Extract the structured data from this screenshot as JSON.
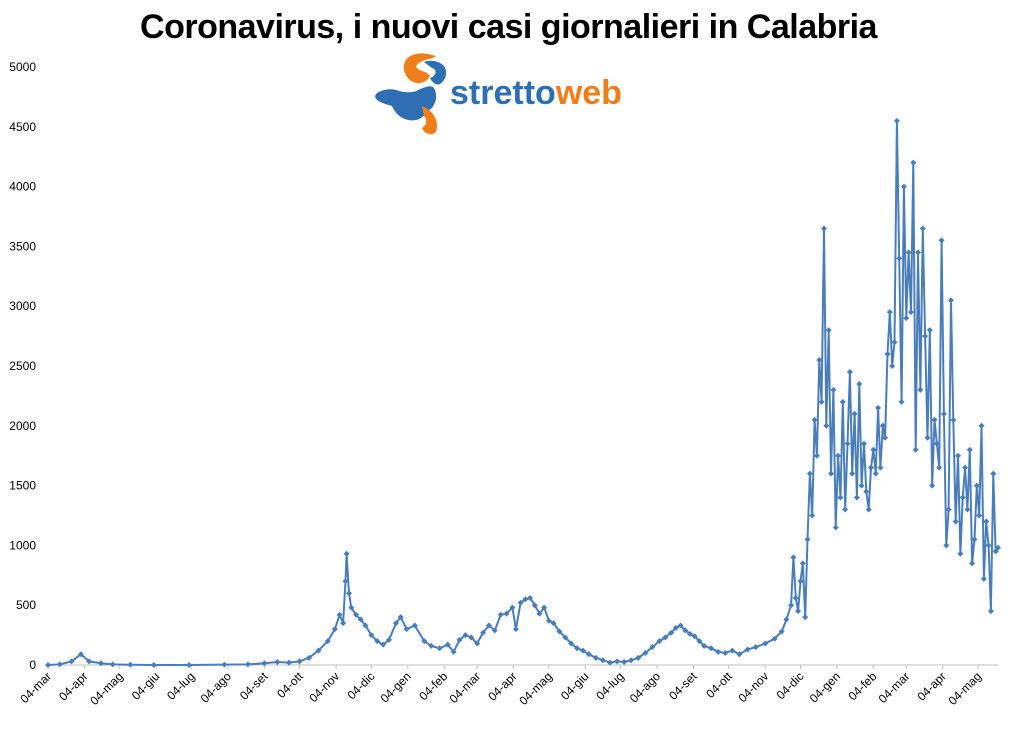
{
  "title": "Coronavirus, i nuovi casi giornalieri in Calabria",
  "logo": {
    "text_a": "stretto",
    "text_b": "web",
    "color_a": "#2e6fb4",
    "color_b": "#ef7d1a"
  },
  "chart_data": {
    "type": "line",
    "title": "Coronavirus, i nuovi casi giornalieri in Calabria",
    "xlabel": "",
    "ylabel": "",
    "ylim": [
      0,
      5000
    ],
    "y_ticks": [
      0,
      500,
      1000,
      1500,
      2000,
      2500,
      3000,
      3500,
      4000,
      4500,
      5000
    ],
    "x_tick_labels": [
      "04-mar",
      "04-apr",
      "04-mag",
      "04-giu",
      "04-lug",
      "04-ago",
      "04-set",
      "04-ott",
      "04-nov",
      "04-dic",
      "04-gen",
      "04-feb",
      "04-mar",
      "04-apr",
      "04-mag",
      "04-giu",
      "04-lug",
      "04-ago",
      "04-set",
      "04-ott",
      "04-nov",
      "04-dic",
      "04-gen",
      "04-feb",
      "04-mar",
      "04-apr",
      "04-mag"
    ],
    "x_tick_day": [
      0,
      31,
      61,
      92,
      122,
      153,
      184,
      214,
      245,
      275,
      306,
      337,
      365,
      396,
      426,
      457,
      487,
      518,
      549,
      579,
      610,
      640,
      671,
      702,
      730,
      761,
      791
    ],
    "x_range_days": [
      0,
      808
    ],
    "grid": false,
    "legend": "none",
    "series_color": "#4a7ebb",
    "marker": "diamond",
    "series": [
      {
        "points": [
          [
            0,
            0
          ],
          [
            10,
            5
          ],
          [
            20,
            30
          ],
          [
            28,
            90
          ],
          [
            35,
            30
          ],
          [
            45,
            15
          ],
          [
            55,
            5
          ],
          [
            70,
            2
          ],
          [
            90,
            0
          ],
          [
            120,
            0
          ],
          [
            150,
            3
          ],
          [
            170,
            5
          ],
          [
            184,
            15
          ],
          [
            195,
            25
          ],
          [
            205,
            20
          ],
          [
            214,
            30
          ],
          [
            222,
            60
          ],
          [
            230,
            120
          ],
          [
            238,
            200
          ],
          [
            244,
            300
          ],
          [
            248,
            420
          ],
          [
            251,
            350
          ],
          [
            253,
            700
          ],
          [
            254,
            930
          ],
          [
            256,
            600
          ],
          [
            258,
            480
          ],
          [
            262,
            420
          ],
          [
            266,
            380
          ],
          [
            270,
            330
          ],
          [
            275,
            250
          ],
          [
            280,
            200
          ],
          [
            285,
            170
          ],
          [
            290,
            210
          ],
          [
            296,
            350
          ],
          [
            300,
            400
          ],
          [
            305,
            300
          ],
          [
            312,
            330
          ],
          [
            320,
            200
          ],
          [
            326,
            160
          ],
          [
            333,
            140
          ],
          [
            340,
            170
          ],
          [
            345,
            110
          ],
          [
            350,
            210
          ],
          [
            355,
            250
          ],
          [
            360,
            230
          ],
          [
            365,
            180
          ],
          [
            370,
            270
          ],
          [
            375,
            330
          ],
          [
            380,
            290
          ],
          [
            385,
            420
          ],
          [
            390,
            430
          ],
          [
            395,
            480
          ],
          [
            398,
            300
          ],
          [
            402,
            520
          ],
          [
            406,
            550
          ],
          [
            410,
            560
          ],
          [
            414,
            500
          ],
          [
            418,
            430
          ],
          [
            422,
            480
          ],
          [
            426,
            370
          ],
          [
            430,
            350
          ],
          [
            435,
            280
          ],
          [
            440,
            230
          ],
          [
            445,
            180
          ],
          [
            450,
            140
          ],
          [
            455,
            120
          ],
          [
            460,
            90
          ],
          [
            466,
            60
          ],
          [
            472,
            40
          ],
          [
            478,
            20
          ],
          [
            484,
            30
          ],
          [
            490,
            25
          ],
          [
            496,
            40
          ],
          [
            502,
            60
          ],
          [
            508,
            100
          ],
          [
            514,
            150
          ],
          [
            520,
            200
          ],
          [
            525,
            230
          ],
          [
            530,
            270
          ],
          [
            534,
            310
          ],
          [
            538,
            330
          ],
          [
            542,
            290
          ],
          [
            546,
            260
          ],
          [
            550,
            240
          ],
          [
            554,
            200
          ],
          [
            558,
            160
          ],
          [
            564,
            140
          ],
          [
            570,
            110
          ],
          [
            576,
            100
          ],
          [
            582,
            120
          ],
          [
            588,
            90
          ],
          [
            595,
            130
          ],
          [
            602,
            150
          ],
          [
            610,
            180
          ],
          [
            618,
            220
          ],
          [
            624,
            280
          ],
          [
            628,
            380
          ],
          [
            632,
            500
          ],
          [
            634,
            900
          ],
          [
            636,
            560
          ],
          [
            638,
            450
          ],
          [
            640,
            700
          ],
          [
            642,
            850
          ],
          [
            644,
            400
          ],
          [
            646,
            1050
          ],
          [
            648,
            1600
          ],
          [
            650,
            1250
          ],
          [
            652,
            2050
          ],
          [
            654,
            1750
          ],
          [
            656,
            2550
          ],
          [
            658,
            2200
          ],
          [
            660,
            3650
          ],
          [
            662,
            2000
          ],
          [
            664,
            2800
          ],
          [
            666,
            1600
          ],
          [
            668,
            2300
          ],
          [
            670,
            1150
          ],
          [
            672,
            1750
          ],
          [
            674,
            1400
          ],
          [
            676,
            2200
          ],
          [
            678,
            1300
          ],
          [
            680,
            1850
          ],
          [
            682,
            2450
          ],
          [
            684,
            1600
          ],
          [
            686,
            2100
          ],
          [
            688,
            1400
          ],
          [
            690,
            2350
          ],
          [
            692,
            1500
          ],
          [
            694,
            1850
          ],
          [
            696,
            1450
          ],
          [
            698,
            1300
          ],
          [
            700,
            1650
          ],
          [
            702,
            1800
          ],
          [
            704,
            1600
          ],
          [
            706,
            2150
          ],
          [
            708,
            1650
          ],
          [
            710,
            2000
          ],
          [
            712,
            1900
          ],
          [
            714,
            2600
          ],
          [
            716,
            2950
          ],
          [
            718,
            2500
          ],
          [
            720,
            2700
          ],
          [
            722,
            4550
          ],
          [
            724,
            3400
          ],
          [
            726,
            2200
          ],
          [
            728,
            4000
          ],
          [
            730,
            2900
          ],
          [
            732,
            3450
          ],
          [
            734,
            2950
          ],
          [
            736,
            4200
          ],
          [
            738,
            1800
          ],
          [
            740,
            3450
          ],
          [
            742,
            2300
          ],
          [
            744,
            3650
          ],
          [
            746,
            2750
          ],
          [
            748,
            1900
          ],
          [
            750,
            2800
          ],
          [
            752,
            1500
          ],
          [
            754,
            2050
          ],
          [
            756,
            1850
          ],
          [
            758,
            1650
          ],
          [
            760,
            3550
          ],
          [
            762,
            2100
          ],
          [
            764,
            1000
          ],
          [
            766,
            1300
          ],
          [
            768,
            3050
          ],
          [
            770,
            2050
          ],
          [
            772,
            1200
          ],
          [
            774,
            1750
          ],
          [
            776,
            930
          ],
          [
            778,
            1400
          ],
          [
            780,
            1650
          ],
          [
            782,
            1300
          ],
          [
            784,
            1800
          ],
          [
            786,
            850
          ],
          [
            788,
            1050
          ],
          [
            790,
            1500
          ],
          [
            792,
            1250
          ],
          [
            794,
            2000
          ],
          [
            796,
            720
          ],
          [
            798,
            1200
          ],
          [
            800,
            1000
          ],
          [
            802,
            450
          ],
          [
            804,
            1600
          ],
          [
            806,
            950
          ],
          [
            808,
            980
          ]
        ]
      }
    ]
  }
}
